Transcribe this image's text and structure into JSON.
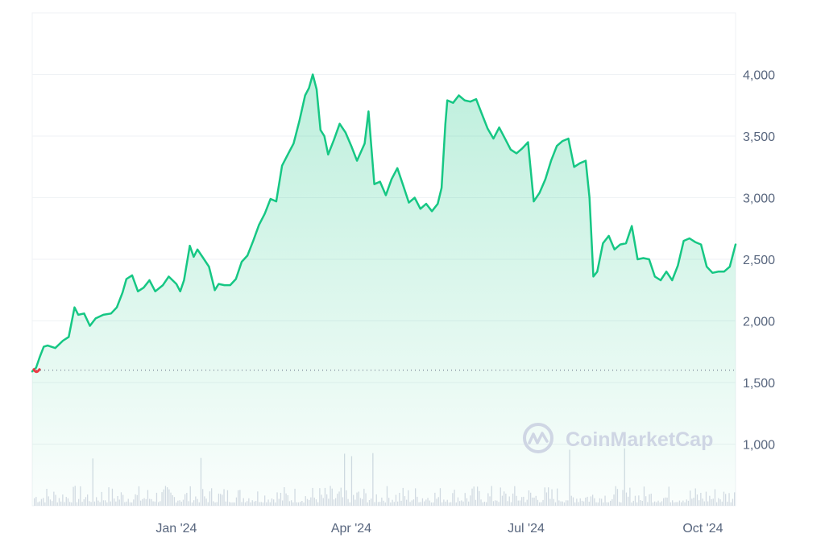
{
  "watermark": "CoinMarketCap",
  "colors": {
    "line": "#16c784",
    "start_dot": "#ea3943",
    "fill_top": "#16c784",
    "grid": "#eff2f5",
    "baseline": "#58667e",
    "volume": "#d6dbe4",
    "text": "#58667e"
  },
  "chart_data": {
    "type": "area",
    "title": "",
    "xlabel": "",
    "ylabel": "",
    "x_ticks": [
      "Jan '24",
      "Apr '24",
      "Jul '24",
      "Oct '24"
    ],
    "x_tick_dates": [
      "2024-01-01",
      "2024-04-01",
      "2024-07-01",
      "2024-10-01"
    ],
    "y_ticks": [
      1000,
      1500,
      2000,
      2500,
      3000,
      3500,
      4000
    ],
    "y_tick_labels": [
      "1,000",
      "1,500",
      "2,000",
      "2,500",
      "3,000",
      "3,500",
      "4,000"
    ],
    "ylim": [
      500,
      4500
    ],
    "xlim": [
      "2023-10-18",
      "2024-10-18"
    ],
    "reference_line": 1600,
    "grid": true,
    "series": [
      {
        "x": [
          "2023-10-18",
          "2023-10-20",
          "2023-10-22",
          "2023-10-24",
          "2023-10-26",
          "2023-10-30",
          "2023-11-03",
          "2023-11-06",
          "2023-11-09",
          "2023-11-11",
          "2023-11-14",
          "2023-11-17",
          "2023-11-20",
          "2023-11-24",
          "2023-11-28",
          "2023-12-01",
          "2023-12-04",
          "2023-12-06",
          "2023-12-09",
          "2023-12-12",
          "2023-12-15",
          "2023-12-18",
          "2023-12-21",
          "2023-12-25",
          "2023-12-28",
          "2024-01-01",
          "2024-01-03",
          "2024-01-05",
          "2024-01-08",
          "2024-01-10",
          "2024-01-12",
          "2024-01-15",
          "2024-01-18",
          "2024-01-21",
          "2024-01-23",
          "2024-01-26",
          "2024-01-29",
          "2024-02-01",
          "2024-02-04",
          "2024-02-07",
          "2024-02-10",
          "2024-02-13",
          "2024-02-16",
          "2024-02-19",
          "2024-02-22",
          "2024-02-25",
          "2024-02-28",
          "2024-03-02",
          "2024-03-05",
          "2024-03-08",
          "2024-03-10",
          "2024-03-12",
          "2024-03-14",
          "2024-03-16",
          "2024-03-18",
          "2024-03-20",
          "2024-03-23",
          "2024-03-26",
          "2024-03-29",
          "2024-04-01",
          "2024-04-04",
          "2024-04-08",
          "2024-04-10",
          "2024-04-13",
          "2024-04-16",
          "2024-04-19",
          "2024-04-22",
          "2024-04-25",
          "2024-04-28",
          "2024-05-01",
          "2024-05-04",
          "2024-05-07",
          "2024-05-10",
          "2024-05-13",
          "2024-05-16",
          "2024-05-18",
          "2024-05-20",
          "2024-05-21",
          "2024-05-24",
          "2024-05-27",
          "2024-05-30",
          "2024-06-02",
          "2024-06-05",
          "2024-06-08",
          "2024-06-11",
          "2024-06-14",
          "2024-06-17",
          "2024-06-20",
          "2024-06-23",
          "2024-06-26",
          "2024-06-29",
          "2024-07-02",
          "2024-07-05",
          "2024-07-08",
          "2024-07-11",
          "2024-07-14",
          "2024-07-17",
          "2024-07-20",
          "2024-07-23",
          "2024-07-26",
          "2024-07-29",
          "2024-08-01",
          "2024-08-03",
          "2024-08-05",
          "2024-08-07",
          "2024-08-10",
          "2024-08-13",
          "2024-08-16",
          "2024-08-19",
          "2024-08-22",
          "2024-08-25",
          "2024-08-28",
          "2024-08-31",
          "2024-09-03",
          "2024-09-06",
          "2024-09-09",
          "2024-09-12",
          "2024-09-15",
          "2024-09-18",
          "2024-09-21",
          "2024-09-24",
          "2024-09-27",
          "2024-09-30",
          "2024-10-03",
          "2024-10-06",
          "2024-10-09",
          "2024-10-12",
          "2024-10-15",
          "2024-10-18"
        ],
        "y": [
          1590,
          1620,
          1710,
          1790,
          1800,
          1780,
          1840,
          1870,
          2110,
          2050,
          2060,
          1960,
          2020,
          2050,
          2060,
          2110,
          2230,
          2340,
          2370,
          2240,
          2270,
          2330,
          2240,
          2290,
          2360,
          2300,
          2240,
          2330,
          2610,
          2520,
          2580,
          2510,
          2440,
          2250,
          2300,
          2290,
          2290,
          2340,
          2480,
          2530,
          2650,
          2780,
          2870,
          2990,
          2970,
          3260,
          3350,
          3440,
          3620,
          3830,
          3890,
          4000,
          3880,
          3550,
          3500,
          3350,
          3470,
          3600,
          3530,
          3420,
          3300,
          3440,
          3700,
          3110,
          3130,
          3020,
          3150,
          3240,
          3100,
          2960,
          3000,
          2910,
          2950,
          2890,
          2950,
          3080,
          3600,
          3790,
          3770,
          3830,
          3790,
          3780,
          3800,
          3680,
          3560,
          3480,
          3570,
          3480,
          3390,
          3360,
          3400,
          3450,
          2970,
          3040,
          3150,
          3300,
          3420,
          3460,
          3480,
          3250,
          3280,
          3300,
          3000,
          2360,
          2400,
          2630,
          2690,
          2580,
          2620,
          2630,
          2770,
          2500,
          2510,
          2500,
          2360,
          2330,
          2400,
          2330,
          2450,
          2650,
          2670,
          2640,
          2620,
          2440,
          2390,
          2400,
          2400,
          2440,
          2620
        ]
      }
    ]
  }
}
